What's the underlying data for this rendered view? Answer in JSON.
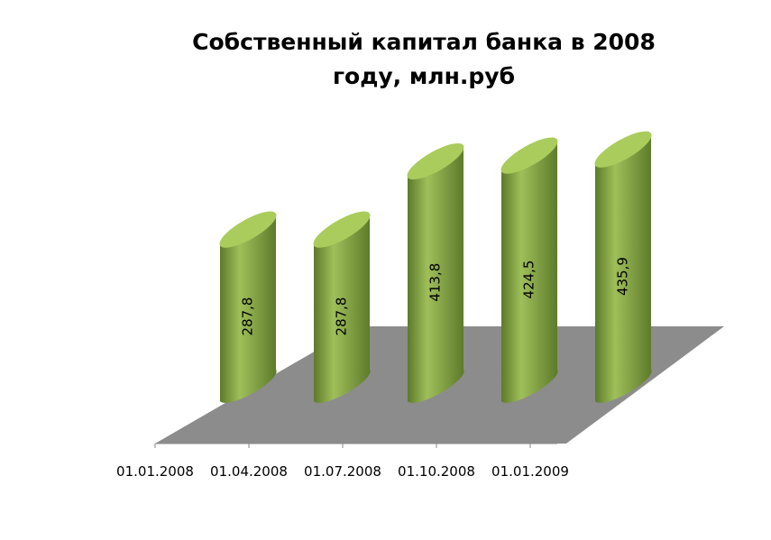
{
  "chart_data": {
    "type": "bar",
    "title_lines": [
      "Собственный капитал банка в 2008",
      "году, млн.руб"
    ],
    "categories": [
      "01.01.2008",
      "01.04.2008",
      "01.07.2008",
      "01.10.2008",
      "01.01.2009"
    ],
    "values": [
      287.8,
      287.8,
      413.8,
      424.5,
      435.9
    ],
    "value_labels": [
      "287,8",
      "287,8",
      "413,8",
      "424,5",
      "435,9"
    ],
    "xlabel": "",
    "ylabel": "",
    "grid": false,
    "legend": "none",
    "colors": {
      "bar_light": "#9fbf5a",
      "bar_dark": "#5c7a2a",
      "bar_top": "#a9cc5c",
      "floor": "#8c8c8c"
    }
  }
}
